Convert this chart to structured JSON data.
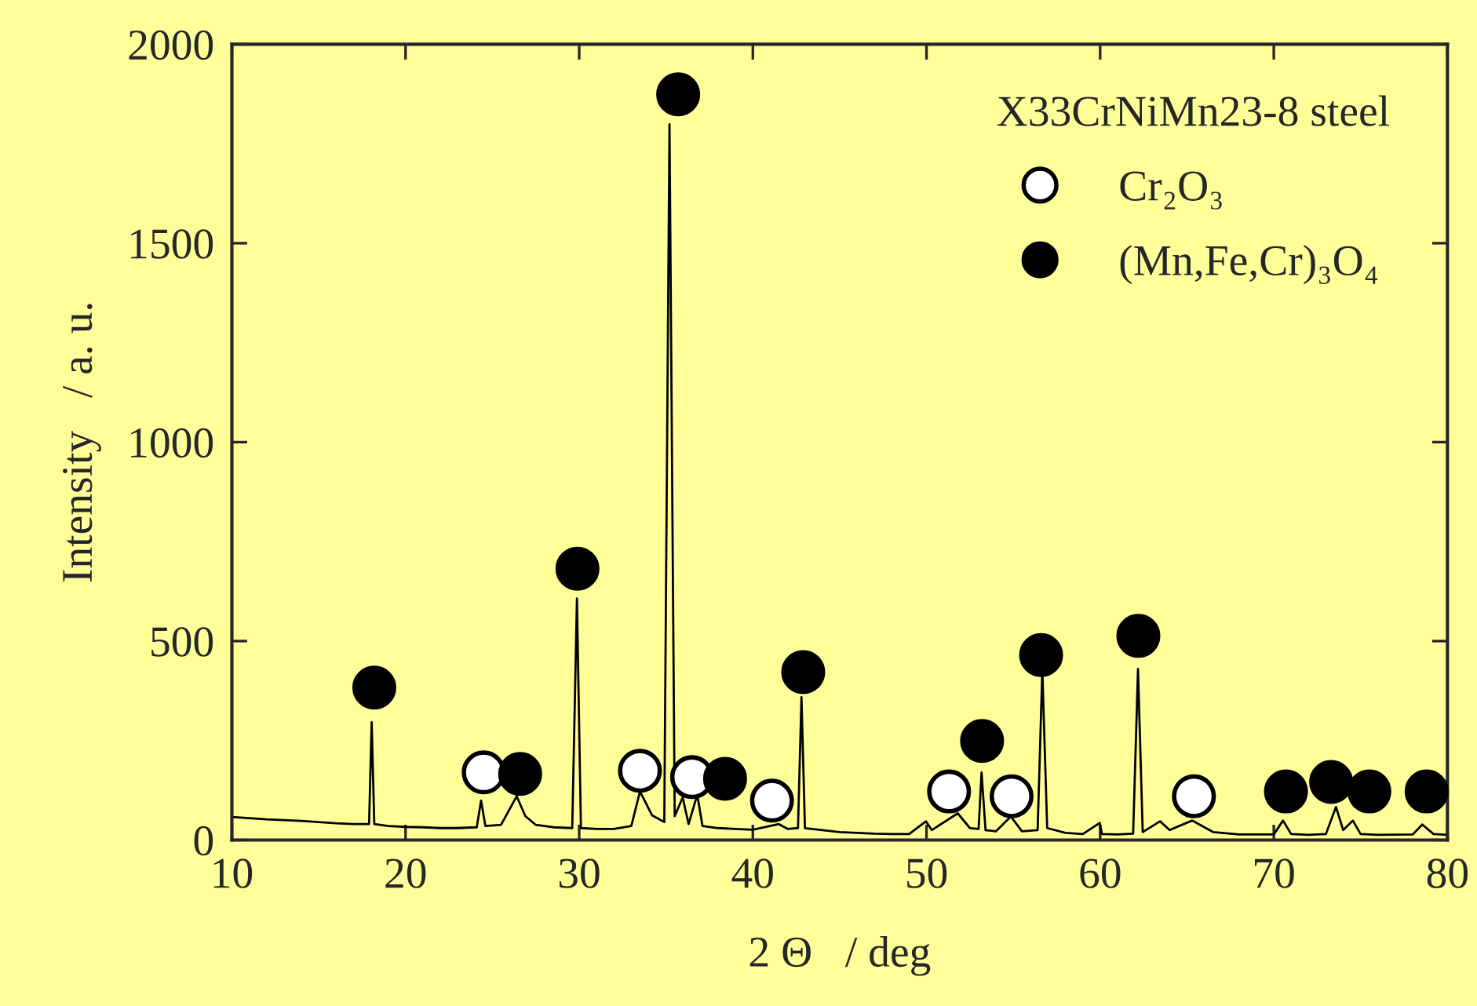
{
  "chart_data": {
    "type": "line",
    "xlabel": "2 Θ   / deg",
    "ylabel": "Intensity   / a. u.",
    "legend_title": "X33CrNiMn23-8 steel",
    "legend": "top right",
    "grid": false,
    "xlim": [
      10,
      80
    ],
    "xticks": [
      10,
      20,
      30,
      40,
      50,
      60,
      70,
      80
    ],
    "ylim": [
      0,
      2000
    ],
    "yticks": [
      0,
      500,
      1000,
      1500,
      2000
    ],
    "series": [
      {
        "color": "#000000",
        "marker": "none",
        "line_style": "solid",
        "x": [
          10,
          11,
          12,
          13,
          14,
          15,
          16,
          17,
          17.9,
          18.05,
          18.2,
          19,
          20,
          21,
          22,
          23,
          24.1,
          24.35,
          24.6,
          25.5,
          26.4,
          26.9,
          27.5,
          28.5,
          29.6,
          29.87,
          30.1,
          31,
          32,
          33,
          33.5,
          34.2,
          34.9,
          35.2,
          35.5,
          35.96,
          36.3,
          36.8,
          37.1,
          38,
          39,
          40,
          41.5,
          42,
          42.6,
          42.8,
          43.0,
          44,
          45,
          46,
          47,
          48,
          49,
          49.97,
          50.3,
          51.8,
          52.5,
          53.0,
          53.17,
          53.4,
          54,
          54.86,
          55.5,
          56.4,
          56.67,
          56.95,
          58,
          59,
          59.98,
          60.1,
          61,
          61.9,
          62.18,
          62.45,
          63.45,
          64,
          65.3,
          66.5,
          68,
          70,
          70.53,
          71,
          72,
          73,
          73.58,
          74,
          74.55,
          75,
          76,
          78,
          78.55,
          79.2,
          80
        ],
        "values": [
          58,
          55,
          52,
          50,
          48,
          45,
          42,
          40,
          40,
          296,
          40,
          35,
          33,
          32,
          30,
          30,
          32,
          99,
          35,
          38,
          110,
          60,
          38,
          32,
          30,
          607,
          30,
          28,
          28,
          35,
          122,
          62,
          45,
          1799,
          60,
          107,
          40,
          114,
          35,
          30,
          28,
          26,
          40,
          28,
          30,
          359,
          30,
          25,
          20,
          18,
          16,
          15,
          15,
          47,
          25,
          67,
          30,
          28,
          170,
          25,
          22,
          59,
          22,
          25,
          427,
          30,
          18,
          15,
          43,
          15,
          14,
          16,
          430,
          20,
          47,
          25,
          49,
          20,
          14,
          14,
          49,
          15,
          13,
          15,
          83,
          25,
          49,
          15,
          13,
          14,
          39,
          15,
          13
        ]
      },
      {
        "type": "scatter",
        "name": "Cr₂O₃",
        "color": "#ffffff",
        "marker": "circle",
        "x": [
          24.5,
          33.5,
          36.5,
          41.1,
          51.3,
          54.9,
          65.4
        ],
        "values": [
          170,
          174,
          158,
          99,
          122,
          110,
          110
        ]
      },
      {
        "type": "scatter",
        "name": "(Mn,Fe,Cr)₃O₄",
        "color": "#000000",
        "marker": "circle",
        "x": [
          18.2,
          26.6,
          29.9,
          35.7,
          38.4,
          42.9,
          53.2,
          56.6,
          62.2,
          70.7,
          73.3,
          75.5,
          78.8
        ],
        "values": [
          383,
          166,
          682,
          1874,
          154,
          422,
          249,
          465,
          513,
          122,
          146,
          122,
          122
        ]
      }
    ]
  }
}
